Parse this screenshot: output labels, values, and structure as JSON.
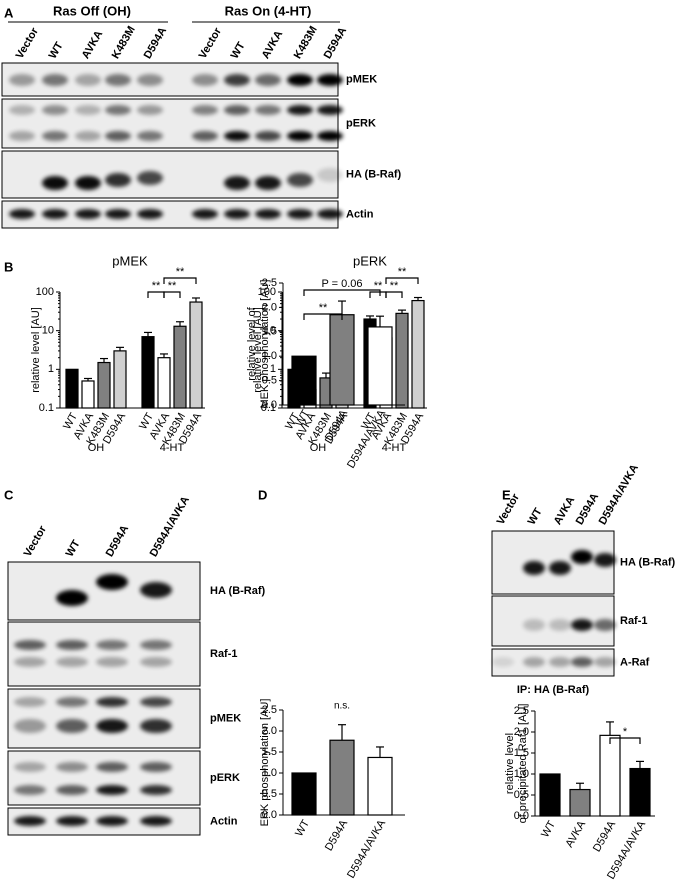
{
  "panel_labels": [
    "A",
    "B",
    "C",
    "D",
    "E"
  ],
  "panel_a": {
    "groups": [
      "Ras Off  (OH)",
      "Ras On (4-HT)"
    ],
    "lanes": [
      "Vector",
      "WT",
      "AVKA",
      "K483M",
      "D594A",
      "Vector",
      "WT",
      "AVKA",
      "K483M",
      "D594A"
    ],
    "rows": [
      "pMEK",
      "pERK",
      "HA (B-Raf)",
      "Actin"
    ]
  },
  "panel_c": {
    "lanes": [
      "Vector",
      "WT",
      "D594A",
      "D594A/AVKA"
    ],
    "rows": [
      "HA (B-Raf)",
      "Raf-1",
      "pMEK",
      "pERK",
      "Actin"
    ]
  },
  "panel_e": {
    "lanes": [
      "Vector",
      "WT",
      "AVKA",
      "D594A",
      "D594A/AVKA"
    ],
    "rows": [
      "HA (B-Raf)",
      "Raf-1",
      "A-Raf"
    ],
    "caption": "IP: HA (B-Raf)"
  },
  "chart_data": [
    {
      "type": "bar",
      "title": "pMEK",
      "ylabel": [
        "relative level [AU]"
      ],
      "yscale": "log",
      "ylim": [
        0.1,
        100
      ],
      "yticks": [
        0.1,
        1,
        10,
        100
      ],
      "categories": [
        "WT",
        "AVKA",
        "K483M",
        "D594A",
        "WT",
        "AVKA",
        "K483M",
        "D594A"
      ],
      "group_labels": [
        "OH",
        "4-HT"
      ],
      "values": [
        1,
        0.5,
        1.5,
        3,
        7,
        2,
        13,
        55
      ],
      "errors": [
        0,
        0.08,
        0.4,
        0.7,
        2,
        0.5,
        4,
        15
      ],
      "colors": [
        "#000000",
        "#ffffff",
        "#808080",
        "#d0d0d0",
        "#000000",
        "#ffffff",
        "#808080",
        "#d0d0d0"
      ],
      "annotations": [
        "**",
        "**",
        "**"
      ]
    },
    {
      "type": "bar",
      "title": "pERK",
      "ylabel": [
        "relative level [AU]"
      ],
      "yscale": "log",
      "ylim": [
        0.1,
        100
      ],
      "yticks": [
        0.1,
        1,
        10,
        100
      ],
      "categories": [
        "WT",
        "AVKA",
        "K483M",
        "D594A",
        "WT",
        "AVKA",
        "K483M",
        "D594A"
      ],
      "group_labels": [
        "OH",
        "4-HT"
      ],
      "values": [
        1,
        0.3,
        0.6,
        0.9,
        20,
        6.5,
        28,
        60
      ],
      "errors": [
        0,
        0.05,
        0.2,
        0.05,
        4,
        1.5,
        6,
        12
      ],
      "colors": [
        "#000000",
        "#ffffff",
        "#808080",
        "#d0d0d0",
        "#000000",
        "#ffffff",
        "#808080",
        "#d0d0d0"
      ],
      "annotations": [
        "**",
        "**",
        "**"
      ]
    },
    {
      "type": "bar",
      "ylabel": [
        "relative level of",
        "MEK phosphorylation [AU]"
      ],
      "ylim": [
        0,
        2.5
      ],
      "yticks": [
        {
          "value": 0,
          "label": "0.0"
        },
        {
          "value": 0.5,
          "label": "0.5"
        },
        {
          "value": 1,
          "label": "1.0"
        },
        {
          "value": 1.5,
          "label": "1.5"
        },
        {
          "value": 2,
          "label": "2.0"
        },
        {
          "value": 2.5,
          "label": "2.5"
        }
      ],
      "categories": [
        "WT",
        "D594A",
        "D594A/AVKA"
      ],
      "values": [
        1,
        1.85,
        1.6
      ],
      "errors": [
        0,
        0.28,
        0.22
      ],
      "colors": [
        "#000000",
        "#808080",
        "#ffffff"
      ],
      "annotations": [
        "**",
        "P = 0.06"
      ]
    },
    {
      "type": "bar",
      "ylabel": [
        "ERK phosphorylation [AU]"
      ],
      "ylim": [
        0,
        2.5
      ],
      "yticks": [
        {
          "value": 0,
          "label": "0.0"
        },
        {
          "value": 0.5,
          "label": "0.5"
        },
        {
          "value": 1,
          "label": "1.0"
        },
        {
          "value": 1.5,
          "label": "1.5"
        },
        {
          "value": 2,
          "label": "2.0"
        },
        {
          "value": 2.5,
          "label": "2.5"
        }
      ],
      "categories": [
        "WT",
        "D594A",
        "D594A/AVKA"
      ],
      "values": [
        1,
        1.78,
        1.37
      ],
      "errors": [
        0,
        0.37,
        0.25
      ],
      "colors": [
        "#000000",
        "#808080",
        "#ffffff"
      ],
      "annotations": [
        "n.s."
      ]
    },
    {
      "type": "bar",
      "ylabel": [
        "relative level",
        "of precipitated Raf1 [AU]"
      ],
      "ylim": [
        0,
        2.5
      ],
      "yticks": [
        {
          "value": 0,
          "label": "0.0"
        },
        {
          "value": 0.5,
          "label": "0.5"
        },
        {
          "value": 1,
          "label": "1.0"
        },
        {
          "value": 1.5,
          "label": "1.5"
        },
        {
          "value": 2,
          "label": "2.0"
        },
        {
          "value": 2.5,
          "label": "2.5"
        }
      ],
      "categories": [
        "WT",
        "AVKA",
        "D594A",
        "D594A/AVKA"
      ],
      "values": [
        1,
        0.63,
        1.92,
        1.13
      ],
      "errors": [
        0,
        0.15,
        0.32,
        0.17
      ],
      "colors": [
        "#000000",
        "#808080",
        "#ffffff",
        "#000000"
      ],
      "annotations": [
        "*"
      ]
    }
  ]
}
